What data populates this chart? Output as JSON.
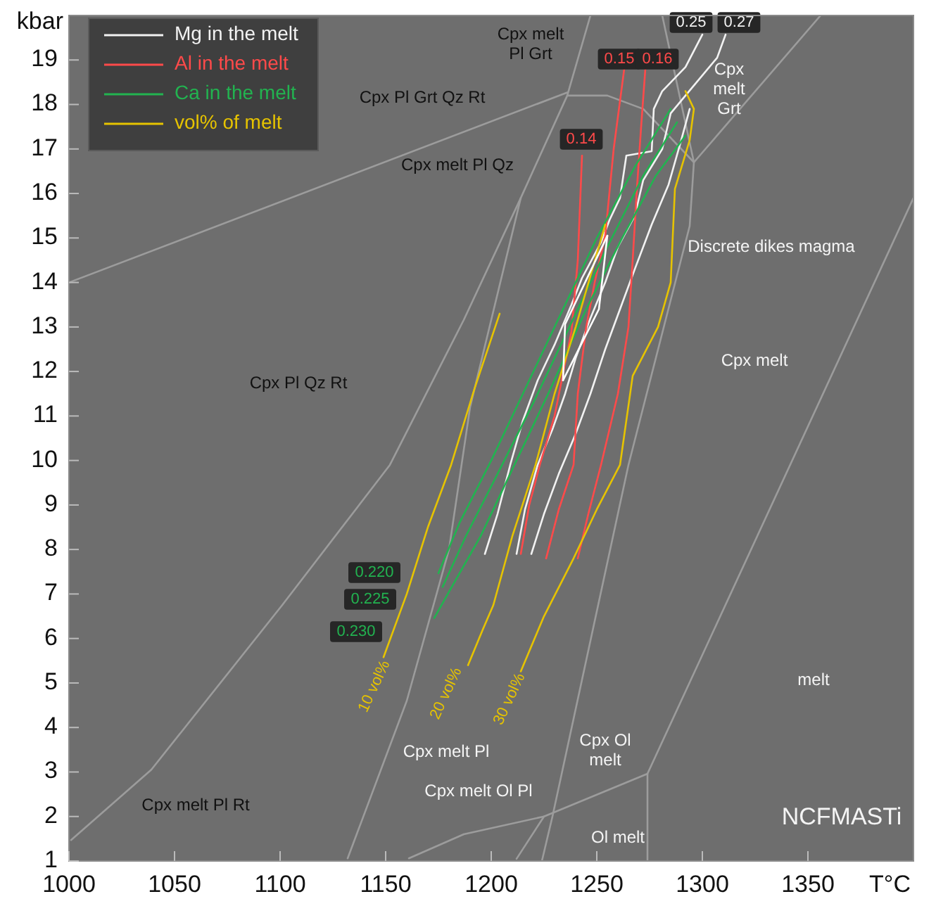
{
  "chart_data": {
    "type": "line",
    "xlabel": "T°C",
    "ylabel": "kbar",
    "xlim": [
      1000,
      1400
    ],
    "ylim": [
      1,
      20
    ],
    "xticks": [
      1000,
      1050,
      1100,
      1150,
      1200,
      1250,
      1300,
      1350
    ],
    "yticks": [
      1,
      2,
      3,
      4,
      5,
      6,
      7,
      8,
      9,
      10,
      11,
      12,
      13,
      14,
      15,
      16,
      17,
      18,
      19
    ],
    "grid": false,
    "legend": "top left",
    "series": [
      {
        "type": "line",
        "color": "#9c9c9c",
        "x": [
          1000,
          1236
        ],
        "values": [
          14.0,
          18.27
        ]
      },
      {
        "type": "line",
        "color": "#9c9c9c",
        "x": [
          1001,
          1039,
          1101,
          1152,
          1187,
          1214,
          1236,
          1247
        ],
        "values": [
          1.47,
          3.05,
          6.75,
          9.9,
          13.16,
          15.9,
          18.2,
          20
        ]
      },
      {
        "type": "line",
        "color": "#9c9c9c",
        "x": [
          1236,
          1255,
          1272,
          1296
        ],
        "values": [
          18.2,
          18.2,
          17.9,
          16.7
        ]
      },
      {
        "type": "line",
        "color": "#9c9c9c",
        "x": [
          1296,
          1356
        ],
        "values": [
          16.7,
          20
        ]
      },
      {
        "type": "line",
        "color": "#9c9c9c",
        "x": [
          1281,
          1296,
          1294,
          1265,
          1229,
          1224
        ],
        "values": [
          20,
          16.7,
          15.27,
          9.9,
          2.0,
          1.0
        ]
      },
      {
        "type": "line",
        "color": "#9c9c9c",
        "x": [
          1132,
          1160,
          1180,
          1190,
          1214
        ],
        "values": [
          1.06,
          4.6,
          8.0,
          11.2,
          15.9
        ]
      },
      {
        "type": "line",
        "color": "#9c9c9c",
        "x": [
          1400,
          1274,
          1274
        ],
        "values": [
          15.9,
          2.96,
          1.0
        ]
      },
      {
        "type": "line",
        "color": "#9c9c9c",
        "x": [
          1274,
          1225,
          1212
        ],
        "values": [
          2.96,
          2.0,
          1.05
        ]
      },
      {
        "type": "line",
        "color": "#9c9c9c",
        "x": [
          1161,
          1187,
          1225
        ],
        "values": [
          1.06,
          1.6,
          2.0
        ]
      },
      {
        "type": "line",
        "name": "Mg in the melt",
        "color": "#f2f2f2",
        "x": [
          1197,
          1203,
          1209,
          1215,
          1222,
          1230,
          1238,
          1243,
          1252,
          1256,
          1261,
          1264,
          1276,
          1277,
          1281,
          1292,
          1300
        ],
        "values": [
          7.9,
          8.8,
          9.9,
          10.9,
          11.8,
          12.6,
          13.5,
          14.1,
          14.9,
          15.4,
          15.9,
          16.85,
          16.95,
          17.9,
          18.3,
          18.84,
          19.57
        ]
      },
      {
        "type": "line",
        "color": "#f2f2f2",
        "x": [
          1212,
          1216,
          1222,
          1229,
          1235,
          1240,
          1247,
          1254,
          1260,
          1268,
          1272,
          1281,
          1285,
          1292,
          1307,
          1311
        ],
        "values": [
          7.9,
          8.9,
          9.9,
          10.7,
          11.5,
          12.3,
          13.2,
          14.0,
          14.8,
          15.5,
          16.3,
          17.0,
          17.8,
          18.2,
          19.05,
          19.57
        ]
      },
      {
        "type": "line",
        "color": "#f2f2f2",
        "x": [
          1219,
          1225,
          1232,
          1240,
          1247,
          1254,
          1261,
          1268,
          1276,
          1284,
          1290,
          1294
        ],
        "values": [
          7.9,
          8.8,
          9.7,
          10.6,
          11.5,
          12.5,
          13.4,
          14.3,
          15.3,
          16.2,
          17.2,
          17.9
        ]
      },
      {
        "type": "line",
        "name": "Al in the melt",
        "color": "#ff4a4a",
        "x": [
          1214,
          1218,
          1223,
          1230,
          1238,
          1241,
          1243
        ],
        "values": [
          7.9,
          9.0,
          9.9,
          11.0,
          12.9,
          14.5,
          16.85
        ]
      },
      {
        "type": "line",
        "color": "#ff4a4a",
        "x": [
          1226,
          1232,
          1239,
          1241,
          1245,
          1249,
          1254,
          1258,
          1263
        ],
        "values": [
          7.8,
          8.9,
          9.9,
          11.5,
          13.0,
          14.0,
          15.05,
          17.0,
          18.8
        ]
      },
      {
        "type": "line",
        "color": "#ff4a4a",
        "x": [
          1241,
          1246,
          1252,
          1260,
          1265,
          1267,
          1269,
          1271,
          1273
        ],
        "values": [
          7.8,
          8.8,
          9.9,
          11.5,
          13.0,
          14.5,
          16.1,
          17.5,
          18.8
        ]
      },
      {
        "type": "line",
        "name": "Ca in the melt",
        "color": "#22b350",
        "x": [
          1175,
          1185,
          1200,
          1215,
          1232,
          1250,
          1268,
          1285
        ],
        "values": [
          7.47,
          8.6,
          10.0,
          11.5,
          13.2,
          15.0,
          16.6,
          17.9
        ]
      },
      {
        "type": "line",
        "color": "#22b350",
        "x": [
          1177,
          1188,
          1203,
          1220,
          1237,
          1255,
          1272,
          1288
        ],
        "values": [
          7.16,
          8.3,
          9.7,
          11.3,
          13.0,
          14.8,
          16.4,
          17.6
        ]
      },
      {
        "type": "line",
        "color": "#22b350",
        "x": [
          1173,
          1183,
          1195,
          1210,
          1228,
          1245,
          1262,
          1278,
          1292
        ],
        "values": [
          6.46,
          7.3,
          8.3,
          9.8,
          11.6,
          13.4,
          15.0,
          16.4,
          17.3
        ]
      },
      {
        "type": "line",
        "name": "vol% of melt",
        "color": "#e6c300",
        "x": [
          1149,
          1160,
          1170,
          1181,
          1192,
          1204
        ],
        "values": [
          5.58,
          7.0,
          8.5,
          9.9,
          11.6,
          13.3
        ]
      },
      {
        "type": "line",
        "color": "#e6c300",
        "x": [
          1189,
          1196,
          1201,
          1210,
          1221,
          1230,
          1240,
          1254
        ],
        "values": [
          5.4,
          6.2,
          6.75,
          8.3,
          9.9,
          11.5,
          13.0,
          15.3
        ]
      },
      {
        "type": "line",
        "color": "#e6c300",
        "x": [
          1214,
          1225,
          1239,
          1250,
          1261,
          1267,
          1279,
          1285,
          1287,
          1294,
          1296,
          1292
        ],
        "values": [
          5.26,
          6.5,
          7.8,
          8.9,
          9.9,
          11.9,
          13.0,
          14.0,
          16.1,
          17.2,
          17.9,
          18.3
        ]
      },
      {
        "type": "line",
        "color": "#ffffff",
        "x": [
          1234,
          1235,
          1255
        ],
        "values": [
          11.8,
          13.06,
          15.05
        ]
      },
      {
        "type": "line",
        "color": "#ffffff",
        "x": [
          1234,
          1251,
          1255
        ],
        "values": [
          11.8,
          13.4,
          15.05
        ]
      }
    ],
    "annotations": [
      "Cpx Pl Grt Qz Rt",
      "Cpx melt\nPl Grt",
      "Cpx melt Pl Qz",
      "Cpx Pl Qz Rt",
      "Cpx melt Pl Rt",
      "Cpx melt Pl",
      "Cpx melt Ol Pl",
      "Cpx Ol\nmelt",
      "Ol melt",
      "melt",
      "NCFMASTi",
      "Cpx melt",
      "Cpx\nmelt\nGrt",
      "Discrete dikes magma",
      "0.14",
      "0.15",
      "0.16",
      "0.25",
      "0.27",
      "0.220",
      "0.225",
      "0.230",
      "10 vol%",
      "20 vol%",
      "30 vol%"
    ]
  }
}
